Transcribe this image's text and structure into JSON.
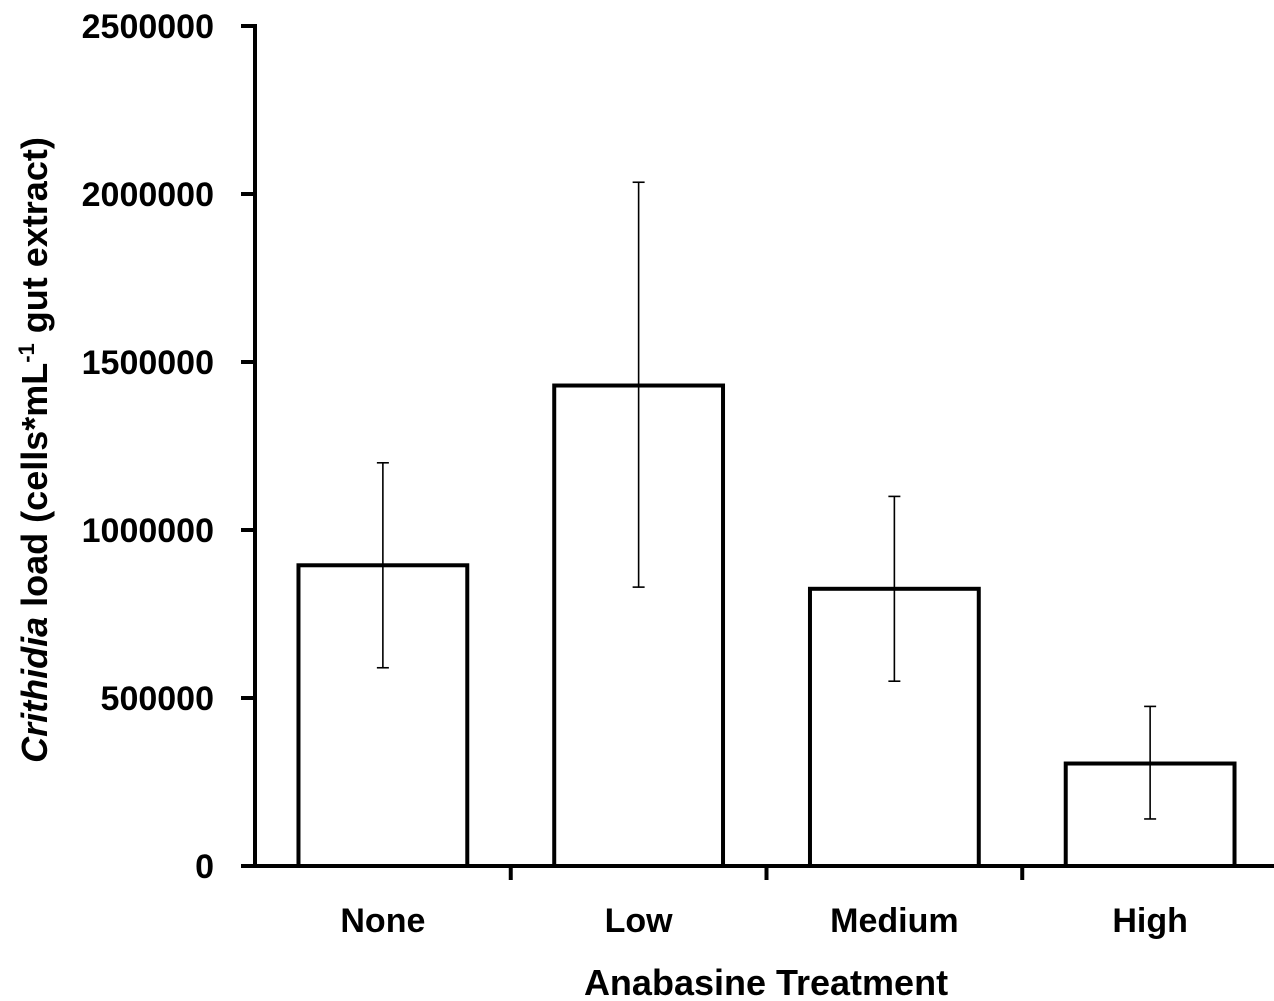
{
  "chart_data": {
    "type": "bar",
    "title": "",
    "xlabel": "Anabasine Treatment",
    "ylabel": {
      "italic_part": "Crithidia",
      "main_part": " load (cells*mL",
      "superscript": "-1",
      "end_part": " gut extract)"
    },
    "categories": [
      "None",
      "Low",
      "Medium",
      "High"
    ],
    "values": [
      895000,
      1430000,
      825000,
      305000
    ],
    "error_low": [
      590000,
      830000,
      550000,
      140000
    ],
    "error_high": [
      1200000,
      2035000,
      1100000,
      475000
    ],
    "ylim": [
      0,
      2500000
    ],
    "yticks": [
      0,
      500000,
      1000000,
      1500000,
      2000000,
      2500000
    ],
    "ytick_labels": [
      "0",
      "500000",
      "1000000",
      "1500000",
      "2000000",
      "2500000"
    ],
    "grid": false,
    "bar_fill": "#ffffff",
    "bar_stroke": "#000000"
  }
}
